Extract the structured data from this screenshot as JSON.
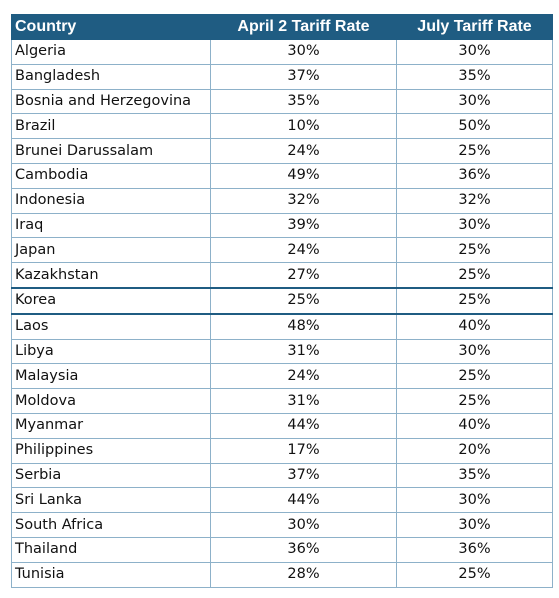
{
  "table": {
    "headers": [
      "Country",
      "April 2 Tariff Rate",
      "July Tariff Rate"
    ],
    "rows": [
      [
        "Algeria",
        "30%",
        "30%"
      ],
      [
        "Bangladesh",
        "37%",
        "35%"
      ],
      [
        "Bosnia and Herzegovina",
        "35%",
        "30%"
      ],
      [
        "Brazil",
        "10%",
        "50%"
      ],
      [
        "Brunei Darussalam",
        "24%",
        "25%"
      ],
      [
        "Cambodia",
        "49%",
        "36%"
      ],
      [
        "Indonesia",
        "32%",
        "32%"
      ],
      [
        "Iraq",
        "39%",
        "30%"
      ],
      [
        "Japan",
        "24%",
        "25%"
      ],
      [
        "Kazakhstan",
        "27%",
        "25%"
      ],
      [
        "Korea",
        "25%",
        "25%"
      ],
      [
        "Laos",
        "48%",
        "40%"
      ],
      [
        "Libya",
        "31%",
        "30%"
      ],
      [
        "Malaysia",
        "24%",
        "25%"
      ],
      [
        "Moldova",
        "31%",
        "25%"
      ],
      [
        "Myanmar",
        "44%",
        "40%"
      ],
      [
        "Philippines",
        "17%",
        "20%"
      ],
      [
        "Serbia",
        "37%",
        "35%"
      ],
      [
        "Sri Lanka",
        "44%",
        "30%"
      ],
      [
        "South Africa",
        "30%",
        "30%"
      ],
      [
        "Thailand",
        "36%",
        "36%"
      ],
      [
        "Tunisia",
        "28%",
        "25%"
      ]
    ]
  },
  "colors": {
    "header_background": "#1f5c82",
    "header_text": "#ffffff",
    "grid_line": "#8db1c9"
  }
}
